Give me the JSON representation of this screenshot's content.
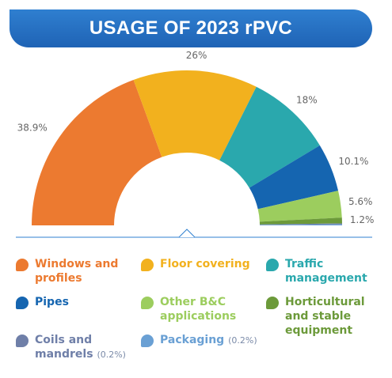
{
  "chart_data": {
    "type": "pie",
    "title": "USAGE OF 2023 rPVC",
    "categories": [
      "Windows and profiles",
      "Floor covering",
      "Traffic management",
      "Pipes",
      "Other B&C applications",
      "Horticultural and stable equipment",
      "Coils and mandrels",
      "Packaging"
    ],
    "values": [
      38.9,
      26,
      18,
      10.1,
      5.6,
      1.2,
      0.2,
      0.2
    ],
    "value_labels": [
      "38.9%",
      "26%",
      "18%",
      "10.1%",
      "5.6%",
      "1.2%",
      "(0.2%)",
      "(0.2%)"
    ],
    "colors": [
      "#ec7a30",
      "#f2b11e",
      "#2aa8ad",
      "#1565b0",
      "#9ccd5e",
      "#6c9a3a",
      "#6f7fa8",
      "#6aa0d4"
    ]
  }
}
